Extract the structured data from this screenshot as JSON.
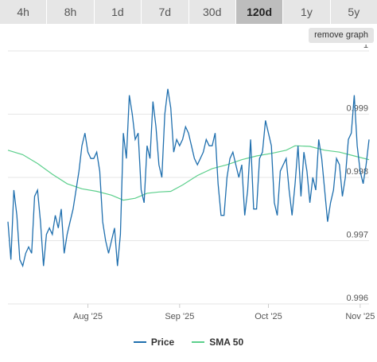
{
  "range_tabs": [
    {
      "label": "4h",
      "active": false
    },
    {
      "label": "8h",
      "active": false
    },
    {
      "label": "1d",
      "active": false
    },
    {
      "label": "7d",
      "active": false
    },
    {
      "label": "30d",
      "active": false
    },
    {
      "label": "120d",
      "active": true
    },
    {
      "label": "1y",
      "active": false
    },
    {
      "label": "5y",
      "active": false
    }
  ],
  "remove_graph_label": "remove graph",
  "colors": {
    "price": "#1f6fae",
    "sma": "#5ccf8c",
    "grid": "#e6e6e6"
  },
  "chart_data": {
    "type": "line",
    "title": "",
    "xlabel": "",
    "ylabel": "",
    "ylim": [
      0.996,
      1.0
    ],
    "yticks": [
      1,
      0.999,
      0.998,
      0.997,
      0.996
    ],
    "xlim": [
      "2025-07-05",
      "2025-11-04"
    ],
    "xticks": [
      {
        "label": "Aug '25",
        "date": "2025-08-01"
      },
      {
        "label": "Sep '25",
        "date": "2025-09-01"
      },
      {
        "label": "Oct '25",
        "date": "2025-10-01"
      },
      {
        "label": "Nov '25",
        "date": "2025-11-01"
      }
    ],
    "legend_position": "bottom",
    "grid": true,
    "series": [
      {
        "name": "Price",
        "color": "#1f6fae",
        "points": [
          [
            "2025-07-05",
            0.9973
          ],
          [
            "2025-07-06",
            0.9967
          ],
          [
            "2025-07-07",
            0.9978
          ],
          [
            "2025-07-08",
            0.9974
          ],
          [
            "2025-07-09",
            0.9967
          ],
          [
            "2025-07-10",
            0.9966
          ],
          [
            "2025-07-11",
            0.9968
          ],
          [
            "2025-07-12",
            0.9969
          ],
          [
            "2025-07-13",
            0.9968
          ],
          [
            "2025-07-14",
            0.9977
          ],
          [
            "2025-07-15",
            0.9978
          ],
          [
            "2025-07-16",
            0.9973
          ],
          [
            "2025-07-17",
            0.9966
          ],
          [
            "2025-07-18",
            0.9971
          ],
          [
            "2025-07-19",
            0.9972
          ],
          [
            "2025-07-20",
            0.9971
          ],
          [
            "2025-07-21",
            0.9974
          ],
          [
            "2025-07-22",
            0.9972
          ],
          [
            "2025-07-23",
            0.9975
          ],
          [
            "2025-07-24",
            0.9968
          ],
          [
            "2025-07-25",
            0.9971
          ],
          [
            "2025-07-26",
            0.9973
          ],
          [
            "2025-07-27",
            0.9975
          ],
          [
            "2025-07-28",
            0.9978
          ],
          [
            "2025-07-29",
            0.9981
          ],
          [
            "2025-07-30",
            0.9985
          ],
          [
            "2025-07-31",
            0.9987
          ],
          [
            "2025-08-01",
            0.9984
          ],
          [
            "2025-08-02",
            0.9983
          ],
          [
            "2025-08-03",
            0.9983
          ],
          [
            "2025-08-04",
            0.9984
          ],
          [
            "2025-08-05",
            0.9981
          ],
          [
            "2025-08-06",
            0.9973
          ],
          [
            "2025-08-07",
            0.997
          ],
          [
            "2025-08-08",
            0.9968
          ],
          [
            "2025-08-09",
            0.997
          ],
          [
            "2025-08-10",
            0.9972
          ],
          [
            "2025-08-11",
            0.9966
          ],
          [
            "2025-08-12",
            0.9971
          ],
          [
            "2025-08-13",
            0.9987
          ],
          [
            "2025-08-14",
            0.9983
          ],
          [
            "2025-08-15",
            0.9993
          ],
          [
            "2025-08-16",
            0.999
          ],
          [
            "2025-08-17",
            0.9986
          ],
          [
            "2025-08-18",
            0.9987
          ],
          [
            "2025-08-19",
            0.9978
          ],
          [
            "2025-08-20",
            0.9976
          ],
          [
            "2025-08-21",
            0.9985
          ],
          [
            "2025-08-22",
            0.9983
          ],
          [
            "2025-08-23",
            0.9992
          ],
          [
            "2025-08-24",
            0.9988
          ],
          [
            "2025-08-25",
            0.9982
          ],
          [
            "2025-08-26",
            0.998
          ],
          [
            "2025-08-27",
            0.999
          ],
          [
            "2025-08-28",
            0.9994
          ],
          [
            "2025-08-29",
            0.9991
          ],
          [
            "2025-08-30",
            0.9984
          ],
          [
            "2025-08-31",
            0.9986
          ],
          [
            "2025-09-01",
            0.9985
          ],
          [
            "2025-09-02",
            0.9986
          ],
          [
            "2025-09-03",
            0.9988
          ],
          [
            "2025-09-04",
            0.9987
          ],
          [
            "2025-09-05",
            0.9985
          ],
          [
            "2025-09-06",
            0.9983
          ],
          [
            "2025-09-07",
            0.9982
          ],
          [
            "2025-09-08",
            0.9983
          ],
          [
            "2025-09-09",
            0.9984
          ],
          [
            "2025-09-10",
            0.9986
          ],
          [
            "2025-09-11",
            0.9985
          ],
          [
            "2025-09-12",
            0.9985
          ],
          [
            "2025-09-13",
            0.9987
          ],
          [
            "2025-09-14",
            0.9979
          ],
          [
            "2025-09-15",
            0.9974
          ],
          [
            "2025-09-16",
            0.9974
          ],
          [
            "2025-09-17",
            0.998
          ],
          [
            "2025-09-18",
            0.9983
          ],
          [
            "2025-09-19",
            0.9984
          ],
          [
            "2025-09-20",
            0.9982
          ],
          [
            "2025-09-21",
            0.998
          ],
          [
            "2025-09-22",
            0.9982
          ],
          [
            "2025-09-23",
            0.9974
          ],
          [
            "2025-09-24",
            0.9978
          ],
          [
            "2025-09-25",
            0.9986
          ],
          [
            "2025-09-26",
            0.9975
          ],
          [
            "2025-09-27",
            0.9975
          ],
          [
            "2025-09-28",
            0.9983
          ],
          [
            "2025-09-29",
            0.9984
          ],
          [
            "2025-09-30",
            0.9989
          ],
          [
            "2025-10-01",
            0.9987
          ],
          [
            "2025-10-02",
            0.9985
          ],
          [
            "2025-10-03",
            0.9976
          ],
          [
            "2025-10-04",
            0.9974
          ],
          [
            "2025-10-05",
            0.9981
          ],
          [
            "2025-10-06",
            0.9982
          ],
          [
            "2025-10-07",
            0.9983
          ],
          [
            "2025-10-08",
            0.9978
          ],
          [
            "2025-10-09",
            0.9974
          ],
          [
            "2025-10-10",
            0.9979
          ],
          [
            "2025-10-11",
            0.9985
          ],
          [
            "2025-10-12",
            0.9977
          ],
          [
            "2025-10-13",
            0.9984
          ],
          [
            "2025-10-14",
            0.9981
          ],
          [
            "2025-10-15",
            0.9976
          ],
          [
            "2025-10-16",
            0.998
          ],
          [
            "2025-10-17",
            0.9978
          ],
          [
            "2025-10-18",
            0.9986
          ],
          [
            "2025-10-19",
            0.9983
          ],
          [
            "2025-10-20",
            0.9978
          ],
          [
            "2025-10-21",
            0.9973
          ],
          [
            "2025-10-22",
            0.9976
          ],
          [
            "2025-10-23",
            0.9978
          ],
          [
            "2025-10-24",
            0.9983
          ],
          [
            "2025-10-25",
            0.9982
          ],
          [
            "2025-10-26",
            0.9977
          ],
          [
            "2025-10-27",
            0.998
          ],
          [
            "2025-10-28",
            0.9986
          ],
          [
            "2025-10-29",
            0.9987
          ],
          [
            "2025-10-30",
            0.9993
          ],
          [
            "2025-10-31",
            0.9985
          ],
          [
            "2025-11-01",
            0.9981
          ],
          [
            "2025-11-02",
            0.9979
          ],
          [
            "2025-11-03",
            0.9982
          ],
          [
            "2025-11-04",
            0.9986
          ]
        ]
      },
      {
        "name": "SMA 50",
        "color": "#5ccf8c",
        "points": [
          [
            "2025-07-05",
            0.99843
          ],
          [
            "2025-07-10",
            0.99836
          ],
          [
            "2025-07-15",
            0.99822
          ],
          [
            "2025-07-20",
            0.99805
          ],
          [
            "2025-07-25",
            0.9979
          ],
          [
            "2025-07-30",
            0.99782
          ],
          [
            "2025-08-04",
            0.99778
          ],
          [
            "2025-08-09",
            0.99772
          ],
          [
            "2025-08-13",
            0.99764
          ],
          [
            "2025-08-17",
            0.99767
          ],
          [
            "2025-08-21",
            0.99775
          ],
          [
            "2025-08-25",
            0.99777
          ],
          [
            "2025-08-29",
            0.99778
          ],
          [
            "2025-09-02",
            0.99788
          ],
          [
            "2025-09-07",
            0.99803
          ],
          [
            "2025-09-12",
            0.99814
          ],
          [
            "2025-09-17",
            0.9982
          ],
          [
            "2025-09-22",
            0.99828
          ],
          [
            "2025-09-27",
            0.99834
          ],
          [
            "2025-10-02",
            0.99838
          ],
          [
            "2025-10-07",
            0.99843
          ],
          [
            "2025-10-10",
            0.9985
          ],
          [
            "2025-10-15",
            0.99849
          ],
          [
            "2025-10-20",
            0.99843
          ],
          [
            "2025-10-25",
            0.9984
          ],
          [
            "2025-10-30",
            0.99834
          ],
          [
            "2025-11-04",
            0.99828
          ]
        ]
      }
    ]
  }
}
